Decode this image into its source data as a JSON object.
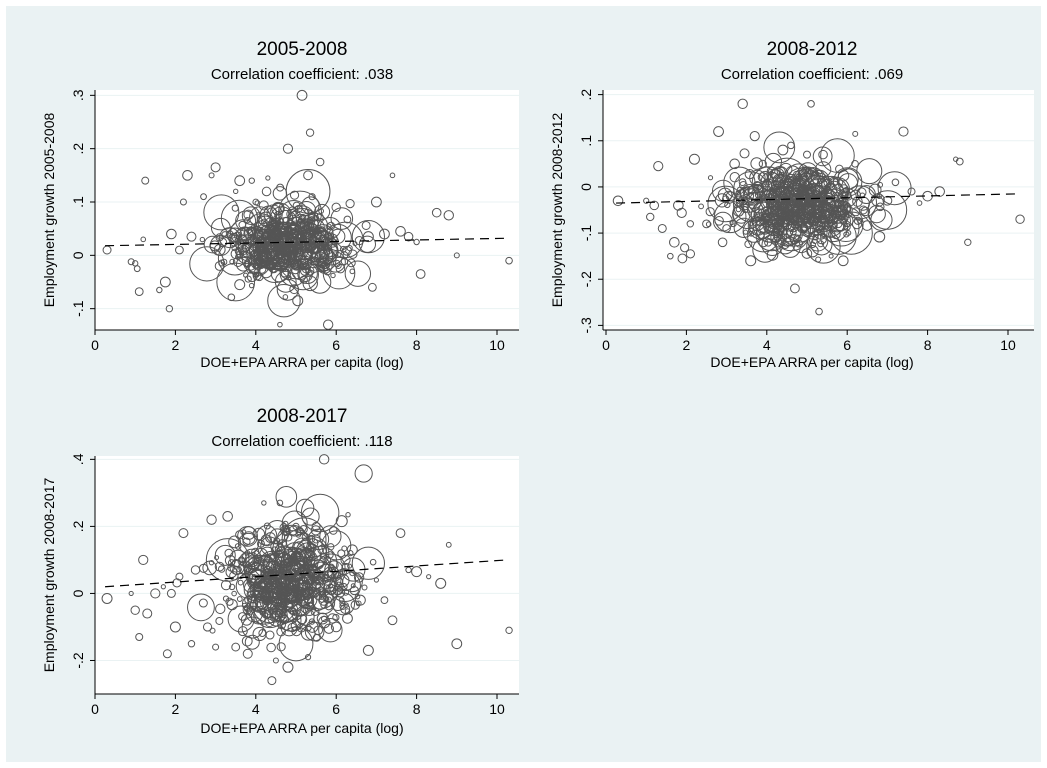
{
  "chart_data": [
    {
      "type": "scatter",
      "title": "2005-2008",
      "subtitle": "Correlation coefficient: .038",
      "xlabel": "DOE+EPA ARRA per capita (log)",
      "ylabel": "Employment growth 2005-2008",
      "xlim": [
        -0.3,
        10.6
      ],
      "ylim": [
        -0.14,
        0.31
      ],
      "xticks": [
        0,
        2,
        4,
        6,
        8,
        10
      ],
      "xtick_labels": [
        "0",
        "2",
        "4",
        "6",
        "8",
        "10"
      ],
      "yticks": [
        -0.1,
        0,
        0.1,
        0.2,
        0.3
      ],
      "ytick_labels": [
        "-.1",
        "0",
        ".1",
        ".2",
        ".3"
      ],
      "grid": true,
      "fit_line": {
        "x": [
          0.25,
          10.25
        ],
        "y": [
          0.018,
          0.032
        ],
        "style": "dashed"
      },
      "cluster": {
        "cx": 4.7,
        "cy": 0.022,
        "sx": 0.75,
        "sy": 0.035
      },
      "points": [
        [
          0.3,
          0.01
        ],
        [
          0.9,
          -0.012
        ],
        [
          1.0,
          -0.015
        ],
        [
          1.05,
          -0.025
        ],
        [
          1.1,
          -0.068
        ],
        [
          1.2,
          0.03
        ],
        [
          1.25,
          0.14
        ],
        [
          1.6,
          -0.065
        ],
        [
          1.75,
          -0.05
        ],
        [
          1.85,
          -0.1
        ],
        [
          1.9,
          0.04
        ],
        [
          2.1,
          0.01
        ],
        [
          2.2,
          0.1
        ],
        [
          2.3,
          0.15
        ],
        [
          2.4,
          0.035
        ],
        [
          2.7,
          0.11
        ],
        [
          2.9,
          0.15
        ],
        [
          3.0,
          0.165
        ],
        [
          3.1,
          -0.02
        ],
        [
          3.5,
          0.12
        ],
        [
          3.6,
          -0.055
        ],
        [
          3.6,
          0.14
        ],
        [
          3.9,
          0.14
        ],
        [
          4.0,
          0.1
        ],
        [
          4.3,
          0.145
        ],
        [
          4.4,
          0.08
        ],
        [
          4.5,
          -0.01
        ],
        [
          4.5,
          0.06
        ],
        [
          4.6,
          -0.13
        ],
        [
          4.8,
          0.2
        ],
        [
          4.95,
          0.04
        ],
        [
          5.0,
          -0.02
        ],
        [
          5.15,
          0.3
        ],
        [
          5.2,
          0.05
        ],
        [
          5.3,
          0.15
        ],
        [
          5.35,
          0.23
        ],
        [
          5.4,
          0.11
        ],
        [
          5.5,
          0.07
        ],
        [
          5.6,
          0.175
        ],
        [
          5.8,
          -0.13
        ],
        [
          6.0,
          0.09
        ],
        [
          6.2,
          0.0
        ],
        [
          6.4,
          -0.03
        ],
        [
          6.8,
          0.035
        ],
        [
          6.9,
          -0.06
        ],
        [
          7.0,
          0.1
        ],
        [
          7.2,
          0.04
        ],
        [
          7.4,
          0.15
        ],
        [
          7.6,
          0.045
        ],
        [
          7.8,
          0.035
        ],
        [
          8.0,
          0.025
        ],
        [
          8.1,
          -0.035
        ],
        [
          8.5,
          0.08
        ],
        [
          8.8,
          0.075
        ],
        [
          9.0,
          0.0
        ],
        [
          10.3,
          -0.01
        ]
      ],
      "big_points": [
        [
          4.7,
          -0.085
        ],
        [
          5.1,
          0.08
        ],
        [
          3.5,
          -0.05
        ],
        [
          6.8,
          0.035
        ],
        [
          5.3,
          0.12
        ]
      ]
    },
    {
      "type": "scatter",
      "title": "2008-2012",
      "subtitle": "Correlation coefficient: .069",
      "xlabel": "DOE+EPA ARRA per capita (log)",
      "ylabel": "Employment growth 2008-2012",
      "xlim": [
        -0.3,
        10.6
      ],
      "ylim": [
        -0.31,
        0.21
      ],
      "xticks": [
        0,
        2,
        4,
        6,
        8,
        10
      ],
      "xtick_labels": [
        "0",
        "2",
        "4",
        "6",
        "8",
        "10"
      ],
      "yticks": [
        -0.3,
        -0.2,
        -0.1,
        0,
        0.1,
        0.2
      ],
      "ytick_labels": [
        "-.3",
        "-.2",
        "-.1",
        "0",
        ".1",
        ".2"
      ],
      "grid": true,
      "fit_line": {
        "x": [
          0.25,
          10.25
        ],
        "y": [
          -0.035,
          -0.015
        ],
        "style": "dashed"
      },
      "cluster": {
        "cx": 4.7,
        "cy": -0.04,
        "sx": 0.85,
        "sy": 0.04
      },
      "points": [
        [
          0.3,
          -0.03
        ],
        [
          1.0,
          -0.03
        ],
        [
          1.1,
          -0.065
        ],
        [
          1.2,
          -0.04
        ],
        [
          1.3,
          0.045
        ],
        [
          1.4,
          -0.09
        ],
        [
          1.6,
          -0.15
        ],
        [
          1.7,
          -0.12
        ],
        [
          1.8,
          -0.04
        ],
        [
          1.9,
          -0.155
        ],
        [
          2.1,
          -0.145
        ],
        [
          2.2,
          0.06
        ],
        [
          2.5,
          -0.08
        ],
        [
          2.6,
          0.02
        ],
        [
          2.8,
          0.12
        ],
        [
          2.9,
          -0.12
        ],
        [
          3.0,
          -0.09
        ],
        [
          3.1,
          -0.02
        ],
        [
          3.2,
          0.05
        ],
        [
          3.4,
          0.18
        ],
        [
          3.6,
          -0.16
        ],
        [
          3.7,
          0.11
        ],
        [
          3.9,
          0.05
        ],
        [
          4.0,
          0.01
        ],
        [
          4.4,
          0.08
        ],
        [
          4.6,
          0.09
        ],
        [
          4.7,
          -0.22
        ],
        [
          5.0,
          0.07
        ],
        [
          5.1,
          0.18
        ],
        [
          5.3,
          -0.27
        ],
        [
          5.4,
          0.07
        ],
        [
          5.6,
          -0.15
        ],
        [
          5.9,
          -0.16
        ],
        [
          6.2,
          0.115
        ],
        [
          6.4,
          -0.05
        ],
        [
          6.8,
          -0.02
        ],
        [
          7.0,
          -0.03
        ],
        [
          7.2,
          0.01
        ],
        [
          7.4,
          0.12
        ],
        [
          7.6,
          -0.01
        ],
        [
          7.8,
          -0.035
        ],
        [
          8.0,
          -0.02
        ],
        [
          8.3,
          -0.01
        ],
        [
          8.7,
          0.06
        ],
        [
          8.8,
          0.055
        ],
        [
          9.0,
          -0.12
        ],
        [
          10.3,
          -0.07
        ]
      ],
      "big_points": [
        [
          4.9,
          0.0
        ],
        [
          5.3,
          -0.045
        ],
        [
          6.1,
          -0.1
        ],
        [
          4.5,
          0.02
        ],
        [
          7.0,
          -0.05
        ]
      ]
    },
    {
      "type": "scatter",
      "title": "2008-2017",
      "subtitle": "Correlation coefficient: .118",
      "xlabel": "DOE+EPA ARRA per capita (log)",
      "ylabel": "Employment growth 2008-2017",
      "xlim": [
        -0.3,
        10.6
      ],
      "ylim": [
        -0.3,
        0.41
      ],
      "xticks": [
        0,
        2,
        4,
        6,
        8,
        10
      ],
      "xtick_labels": [
        "0",
        "2",
        "4",
        "6",
        "8",
        "10"
      ],
      "yticks": [
        -0.2,
        0,
        0.2,
        0.4
      ],
      "ytick_labels": [
        "-.2",
        "0",
        ".2",
        ".4"
      ],
      "grid": true,
      "fit_line": {
        "x": [
          0.25,
          10.25
        ],
        "y": [
          0.02,
          0.1
        ],
        "style": "dashed"
      },
      "cluster": {
        "cx": 4.8,
        "cy": 0.03,
        "sx": 0.8,
        "sy": 0.08
      },
      "points": [
        [
          0.3,
          -0.015
        ],
        [
          0.9,
          0.0
        ],
        [
          1.0,
          -0.05
        ],
        [
          1.1,
          -0.13
        ],
        [
          1.2,
          0.1
        ],
        [
          1.3,
          -0.06
        ],
        [
          1.5,
          0.0
        ],
        [
          1.7,
          0.02
        ],
        [
          1.8,
          -0.18
        ],
        [
          1.9,
          0.0
        ],
        [
          2.0,
          -0.1
        ],
        [
          2.1,
          0.05
        ],
        [
          2.2,
          0.18
        ],
        [
          2.4,
          -0.15
        ],
        [
          2.5,
          0.07
        ],
        [
          2.7,
          0.075
        ],
        [
          2.8,
          -0.1
        ],
        [
          2.9,
          0.22
        ],
        [
          3.0,
          -0.16
        ],
        [
          3.1,
          0.08
        ],
        [
          3.3,
          0.23
        ],
        [
          3.5,
          -0.16
        ],
        [
          3.6,
          0.175
        ],
        [
          3.8,
          -0.18
        ],
        [
          4.0,
          0.1
        ],
        [
          4.2,
          0.27
        ],
        [
          4.4,
          -0.26
        ],
        [
          4.5,
          -0.2
        ],
        [
          4.6,
          0.27
        ],
        [
          4.8,
          -0.22
        ],
        [
          5.0,
          0.2
        ],
        [
          5.3,
          -0.19
        ],
        [
          5.5,
          0.2
        ],
        [
          5.7,
          0.4
        ],
        [
          6.0,
          -0.1
        ],
        [
          6.4,
          0.13
        ],
        [
          6.6,
          -0.02
        ],
        [
          6.8,
          -0.17
        ],
        [
          7.0,
          0.04
        ],
        [
          7.2,
          -0.02
        ],
        [
          7.4,
          -0.08
        ],
        [
          7.6,
          0.18
        ],
        [
          7.8,
          0.07
        ],
        [
          8.0,
          0.065
        ],
        [
          8.3,
          0.05
        ],
        [
          8.6,
          0.03
        ],
        [
          8.8,
          0.145
        ],
        [
          9.0,
          -0.15
        ],
        [
          10.3,
          -0.11
        ]
      ],
      "big_points": [
        [
          5.6,
          0.24
        ],
        [
          6.8,
          0.09
        ],
        [
          4.9,
          0.13
        ],
        [
          3.3,
          0.1
        ],
        [
          5.2,
          0.16
        ]
      ]
    }
  ]
}
